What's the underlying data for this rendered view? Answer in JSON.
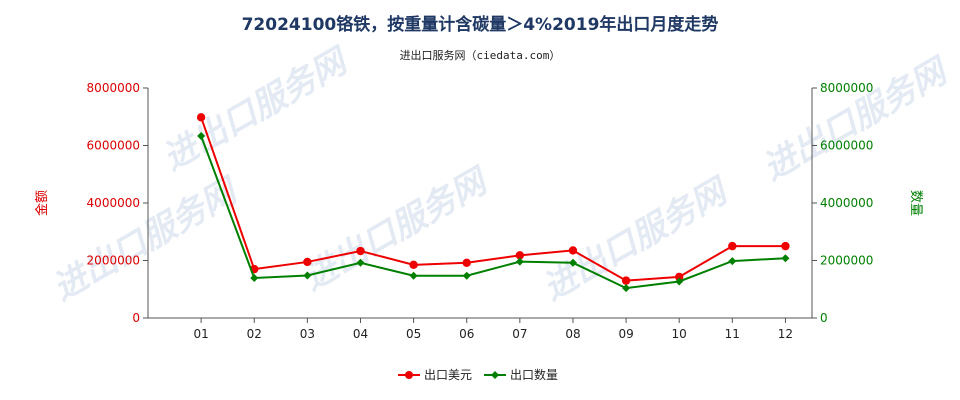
{
  "chart_data": {
    "type": "line",
    "title": "72024100铬铁，按重量计含碳量＞4%2019年出口月度走势",
    "subtitle": "进出口服务网（ciedata.com）",
    "categories": [
      "01",
      "02",
      "03",
      "04",
      "05",
      "06",
      "07",
      "08",
      "09",
      "10",
      "11",
      "12"
    ],
    "series": [
      {
        "name": "出口美元",
        "axis": "left",
        "color": "#ee0000",
        "values": [
          6980000,
          1700000,
          1950000,
          2330000,
          1850000,
          1920000,
          2180000,
          2350000,
          1300000,
          1430000,
          2500000,
          2500000
        ]
      },
      {
        "name": "出口数量",
        "axis": "right",
        "color": "#008000",
        "values": [
          6330000,
          1390000,
          1480000,
          1920000,
          1470000,
          1470000,
          1960000,
          1920000,
          1040000,
          1270000,
          1980000,
          2080000
        ]
      }
    ],
    "ylabel_left": "金额",
    "ylabel_right": "数量",
    "ylim_left": [
      0,
      8000000
    ],
    "ylim_right": [
      0,
      8000000
    ],
    "yticks": [
      "0",
      "2000000",
      "4000000",
      "6000000",
      "8000000"
    ],
    "tick_values": [
      0,
      2000000,
      4000000,
      6000000,
      8000000
    ],
    "left_axis_color": "#dd0000",
    "right_axis_color": "#008000",
    "legend_position": "bottom-center",
    "grid": false
  },
  "watermark_text": "进出口服务网"
}
